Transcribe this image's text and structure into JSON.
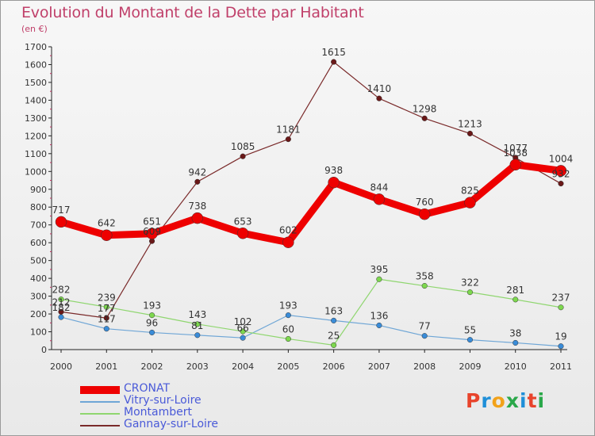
{
  "title": "Evolution du Montant de la Dette par Habitant",
  "subtitle": "(en €)",
  "logo": {
    "text": "Proxiti",
    "colors": [
      "#e8442c",
      "#1f8fd8",
      "#f2a21a",
      "#2aa84a",
      "#1f8fd8",
      "#e8442c",
      "#2aa84a"
    ]
  },
  "chart_data": {
    "type": "line",
    "x": [
      "2000",
      "2001",
      "2002",
      "2003",
      "2004",
      "2005",
      "2006",
      "2007",
      "2008",
      "2009",
      "2010",
      "2011"
    ],
    "ylim": [
      0,
      1700
    ],
    "yticks": [
      0,
      100,
      200,
      300,
      400,
      500,
      600,
      700,
      800,
      900,
      1000,
      1100,
      1200,
      1300,
      1400,
      1500,
      1600,
      1700
    ],
    "grid": false,
    "legend_position": "bottom-left",
    "series": [
      {
        "name": "CRONAT",
        "color": "#ee0000",
        "values": [
          717,
          642,
          651,
          738,
          653,
          602,
          938,
          844,
          760,
          825,
          1038,
          1004
        ]
      },
      {
        "name": "Vitry-sur-Loire",
        "color": "#6fa6d6",
        "values": [
          182,
          117,
          96,
          81,
          66,
          193,
          163,
          136,
          77,
          55,
          38,
          19
        ]
      },
      {
        "name": "Montambert",
        "color": "#8fd66f",
        "values": [
          282,
          239,
          193,
          143,
          102,
          60,
          25,
          395,
          358,
          322,
          281,
          237
        ]
      },
      {
        "name": "Gannay-sur-Loire",
        "color": "#7a2a2a",
        "values": [
          212,
          177,
          609,
          942,
          1085,
          1181,
          1615,
          1410,
          1298,
          1213,
          1077,
          932
        ]
      }
    ]
  }
}
